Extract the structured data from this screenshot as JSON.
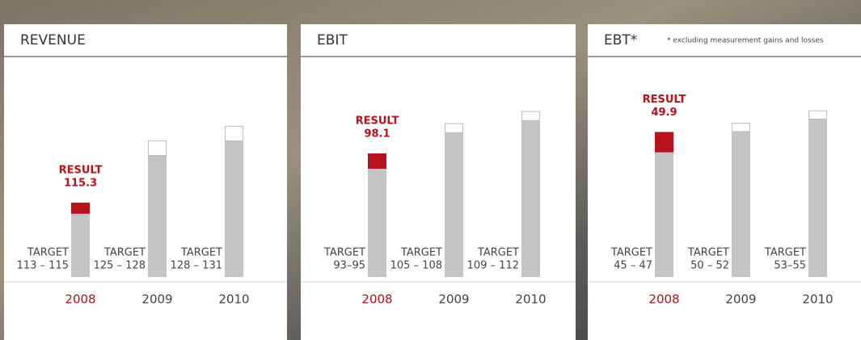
{
  "chart_data": [
    {
      "type": "bar",
      "title": "REVENUE",
      "categories": [
        "2008",
        "2009",
        "2010"
      ],
      "target_label": "TARGET",
      "targets": [
        {
          "range": "113 – 115",
          "low": 113,
          "high": 115
        },
        {
          "range": "125 – 128",
          "low": 125,
          "high": 128
        },
        {
          "range": "128 – 131",
          "low": 128,
          "high": 131
        }
      ],
      "result": {
        "label": "RESULT",
        "value": 115.3
      },
      "ylim": [
        100,
        147
      ],
      "color": "#c4c4c4",
      "highlight_color": "#b5121b"
    },
    {
      "type": "bar",
      "title": "EBIT",
      "categories": [
        "2008",
        "2009",
        "2010"
      ],
      "target_label": "TARGET",
      "targets": [
        {
          "range": "93–95",
          "low": 93,
          "high": 95
        },
        {
          "range": "105 – 108",
          "low": 105,
          "high": 108
        },
        {
          "range": "109 – 112",
          "low": 109,
          "high": 112
        }
      ],
      "result": {
        "label": "RESULT",
        "value": 98.1
      },
      "ylim": [
        57,
        133
      ],
      "color": "#c4c4c4",
      "highlight_color": "#b5121b"
    },
    {
      "type": "bar",
      "title": "EBT*",
      "note": "* excluding measurement gains and losses",
      "categories": [
        "2008",
        "2009",
        "2010"
      ],
      "target_label": "TARGET",
      "targets": [
        {
          "range": "45 – 47",
          "low": 45,
          "high": 47
        },
        {
          "range": "50 – 52",
          "low": 50,
          "high": 52
        },
        {
          "range": "53–55",
          "low": 53,
          "high": 55
        }
      ],
      "result": {
        "label": "RESULT",
        "value": 49.9
      },
      "ylim": [
        15,
        70
      ],
      "color": "#c4c4c4",
      "highlight_color": "#b5121b"
    }
  ]
}
